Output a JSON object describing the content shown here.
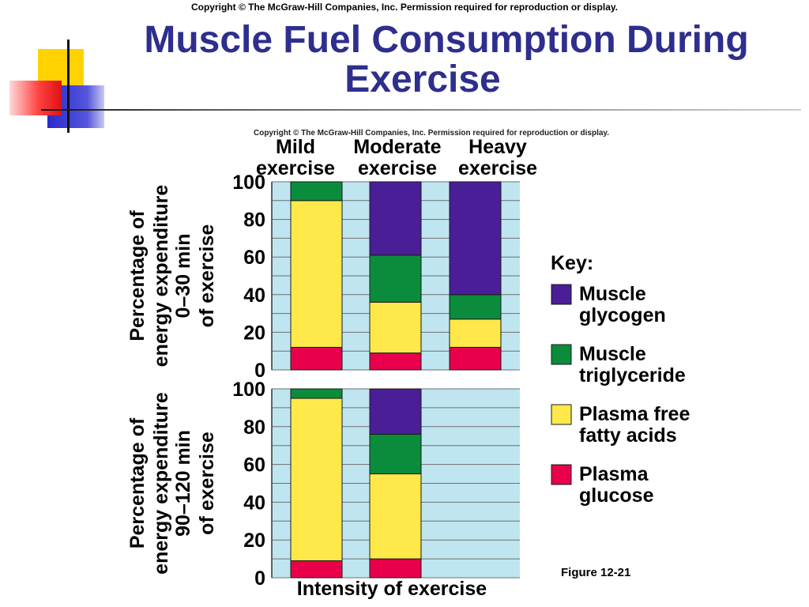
{
  "copyright_top": "Copyright © The McGraw-Hill Companies, Inc. Permission required for reproduction or display.",
  "slide_title_line1": "Muscle Fuel Consumption During",
  "slide_title_line2": "Exercise",
  "figure_label": "Figure 12-21",
  "chart_data": {
    "type": "bar",
    "stacked": true,
    "copyright": "Copyright © The McGraw-Hill Companies, Inc. Permission required for reproduction or display.",
    "categories": [
      {
        "line1": "Mild",
        "line2": "exercise"
      },
      {
        "line1": "Moderate",
        "line2": "exercise"
      },
      {
        "line1": "Heavy",
        "line2": "exercise"
      }
    ],
    "xlabel": "Intensity of exercise",
    "ylim": [
      0,
      100
    ],
    "yticks": [
      "0",
      "20",
      "40",
      "60",
      "80",
      "100"
    ],
    "legend_title": "Key:",
    "legend_position": "right",
    "series": [
      {
        "name_line1": "Plasma",
        "name_line2": "glucose",
        "color": "#e8004a"
      },
      {
        "name_line1": "Plasma free",
        "name_line2": "fatty acids",
        "color": "#ffe84a"
      },
      {
        "name_line1": "Muscle",
        "name_line2": "triglyceride",
        "color": "#0a8c3c"
      },
      {
        "name_line1": "Muscle",
        "name_line2": "glycogen",
        "color": "#4a1e96"
      }
    ],
    "panels": [
      {
        "ylabel_line1": "Percentage of",
        "ylabel_line2": "energy expenditure",
        "ylabel_line3": "0–30 min",
        "ylabel_line4": "of exercise",
        "values": [
          [
            12,
            78,
            10,
            0
          ],
          [
            9,
            27,
            25,
            39
          ],
          [
            12,
            15,
            13,
            60
          ]
        ]
      },
      {
        "ylabel_line1": "Percentage of",
        "ylabel_line2": "energy expenditure",
        "ylabel_line3": "90–120 min",
        "ylabel_line4": "of exercise",
        "values": [
          [
            9,
            86,
            5,
            0
          ],
          [
            10,
            45,
            21,
            24
          ],
          null
        ]
      }
    ],
    "grid": true,
    "plot_background": "#bfe6f0"
  }
}
